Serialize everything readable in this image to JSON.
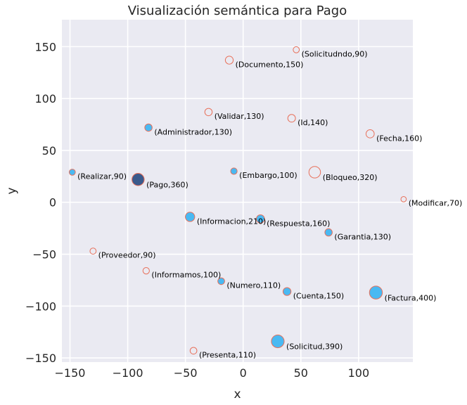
{
  "chart_data": {
    "type": "scatter",
    "title": "Visualización semántica para Pago",
    "xlabel": "x",
    "ylabel": "y",
    "xlim": [
      -157,
      147
    ],
    "ylim": [
      -154,
      176
    ],
    "xticks": [
      -150,
      -100,
      -50,
      0,
      50,
      100
    ],
    "yticks": [
      -150,
      -100,
      -50,
      0,
      50,
      100,
      150
    ],
    "xtick_labels": [
      "−150",
      "−100",
      "−50",
      "0",
      "50",
      "100"
    ],
    "ytick_labels": [
      "−150",
      "−100",
      "−50",
      "0",
      "50",
      "100",
      "150"
    ],
    "grid": true,
    "points": [
      {
        "x": -91,
        "y": 22,
        "label": "(Pago,360)",
        "size": 360,
        "fill": "dark"
      },
      {
        "x": 46,
        "y": 147,
        "label": "(Solicitudndo,90)",
        "size": 90,
        "fill": "none"
      },
      {
        "x": -12,
        "y": 137,
        "label": "(Documento,150)",
        "size": 150,
        "fill": "none"
      },
      {
        "x": -30,
        "y": 87,
        "label": "(Validar,130)",
        "size": 130,
        "fill": "none"
      },
      {
        "x": 42,
        "y": 81,
        "label": "(Id,140)",
        "size": 140,
        "fill": "none"
      },
      {
        "x": -82,
        "y": 72,
        "label": "(Administrador,130)",
        "size": 130,
        "fill": "blue"
      },
      {
        "x": 110,
        "y": 66,
        "label": "(Fecha,160)",
        "size": 160,
        "fill": "none"
      },
      {
        "x": -148,
        "y": 29,
        "label": "(Realizar,90)",
        "size": 90,
        "fill": "blue"
      },
      {
        "x": -8,
        "y": 30,
        "label": "(Embargo,100)",
        "size": 100,
        "fill": "blue"
      },
      {
        "x": 62,
        "y": 29,
        "label": "(Bloqueo,320)",
        "size": 320,
        "fill": "none"
      },
      {
        "x": 139,
        "y": 3,
        "label": "(Modificar,70)",
        "size": 70,
        "fill": "none"
      },
      {
        "x": -46,
        "y": -14,
        "label": "(Informacion,210)",
        "size": 210,
        "fill": "blue"
      },
      {
        "x": 15,
        "y": -16,
        "label": "(Respuesta,160)",
        "size": 160,
        "fill": "blue"
      },
      {
        "x": 74,
        "y": -29,
        "label": "(Garantia,130)",
        "size": 130,
        "fill": "blue"
      },
      {
        "x": -130,
        "y": -47,
        "label": "(Proveedor,90)",
        "size": 90,
        "fill": "none"
      },
      {
        "x": -84,
        "y": -66,
        "label": "(Informamos,100)",
        "size": 100,
        "fill": "none"
      },
      {
        "x": -19,
        "y": -76,
        "label": "(Numero,110)",
        "size": 110,
        "fill": "blue"
      },
      {
        "x": 38,
        "y": -86,
        "label": "(Cuenta,150)",
        "size": 150,
        "fill": "blue"
      },
      {
        "x": 115,
        "y": -87,
        "label": "(Factura,400)",
        "size": 400,
        "fill": "blue"
      },
      {
        "x": -43,
        "y": -143,
        "label": "(Presenta,110)",
        "size": 110,
        "fill": "none"
      },
      {
        "x": 30,
        "y": -134,
        "label": "(Solicitud,390)",
        "size": 390,
        "fill": "blue"
      }
    ],
    "colors": {
      "background": "#eaeaf2",
      "grid": "#ffffff",
      "edge": "#e8705a",
      "blue": "#4ab9f2",
      "dark": "#3a5a8c"
    }
  }
}
